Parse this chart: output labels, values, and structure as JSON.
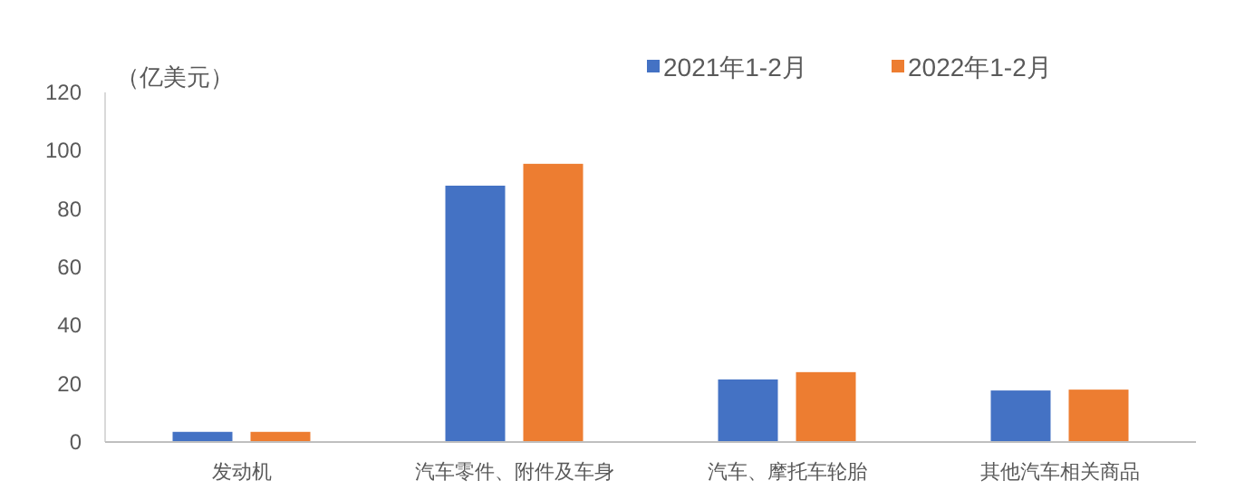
{
  "chart_data": {
    "type": "bar",
    "ylabel": "（亿美元）",
    "categories": [
      "发动机",
      "汽车零件、附件及车身",
      "汽车、摩托车轮胎",
      "其他汽车相关商品"
    ],
    "series": [
      {
        "name": "2021年1-2月",
        "color": "#4472c4",
        "values": [
          3.8,
          88.3,
          21.8,
          18.0
        ]
      },
      {
        "name": "2022年1-2月",
        "color": "#ed7d31",
        "values": [
          3.8,
          95.8,
          24.3,
          18.3
        ]
      }
    ],
    "ylim": [
      0,
      120
    ],
    "yticks": [
      0,
      20,
      40,
      60,
      80,
      100,
      120
    ],
    "grid": false,
    "legend": "top right"
  }
}
